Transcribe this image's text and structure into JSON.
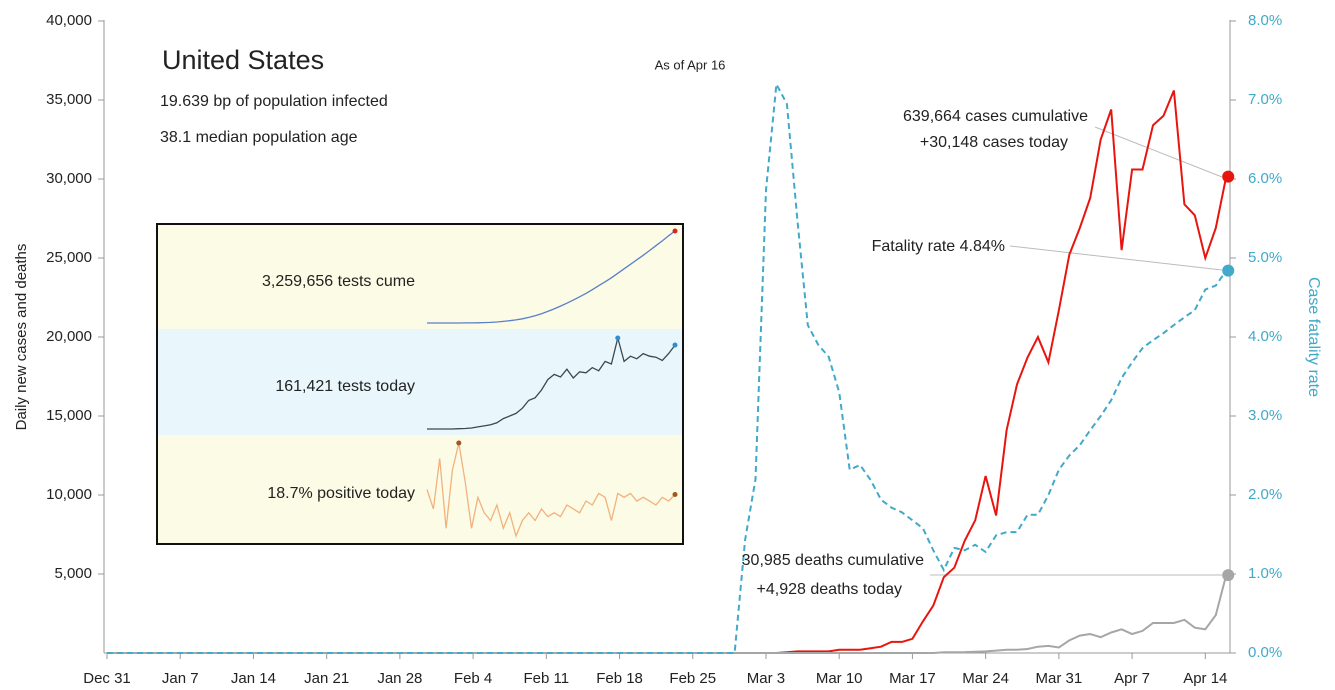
{
  "chart_data": [
    {
      "type": "line",
      "title": "United States",
      "annotations": [
        "19.639 bp of population infected",
        "38.1 median population age",
        "As of Apr 16",
        "639,664 cases cumulative",
        "+30,148 cases today",
        "Fatality rate 4.84%",
        "30,985 deaths cumulative",
        "+4,928 deaths today"
      ],
      "ylabel": "Daily new cases and deaths",
      "y2label": "Case fatality rate",
      "categories": [
        "Dec 31",
        null,
        null,
        null,
        null,
        null,
        null,
        "Jan 7",
        null,
        null,
        null,
        null,
        null,
        null,
        "Jan 14",
        null,
        null,
        null,
        null,
        null,
        null,
        "Jan 21",
        null,
        null,
        null,
        null,
        null,
        null,
        "Jan 28",
        null,
        null,
        null,
        null,
        null,
        null,
        "Feb 4",
        null,
        null,
        null,
        null,
        null,
        null,
        "Feb 11",
        null,
        null,
        null,
        null,
        null,
        null,
        "Feb 18",
        null,
        null,
        null,
        null,
        null,
        null,
        "Feb 25",
        null,
        null,
        null,
        null,
        null,
        null,
        "Mar 3",
        null,
        null,
        null,
        null,
        null,
        null,
        "Mar 10",
        null,
        null,
        null,
        null,
        null,
        null,
        "Mar 17",
        null,
        null,
        null,
        null,
        null,
        null,
        "Mar 24",
        null,
        null,
        null,
        null,
        null,
        null,
        "Mar 31",
        null,
        null,
        null,
        null,
        null,
        null,
        "Apr 7",
        null,
        null,
        null,
        null,
        null,
        null,
        "Apr 14",
        null,
        null
      ],
      "series": [
        {
          "name": "Daily new cases",
          "color": "#e8150f",
          "axis": "y",
          "dash": false,
          "values": [
            0,
            0,
            0,
            0,
            0,
            0,
            0,
            0,
            0,
            0,
            0,
            0,
            0,
            0,
            0,
            0,
            0,
            0,
            0,
            0,
            0,
            0,
            0,
            0,
            0,
            0,
            0,
            0,
            0,
            0,
            0,
            0,
            0,
            0,
            0,
            0,
            0,
            0,
            0,
            0,
            0,
            0,
            0,
            0,
            0,
            0,
            0,
            0,
            0,
            0,
            0,
            0,
            0,
            0,
            0,
            0,
            0,
            0,
            0,
            0,
            0,
            0,
            0,
            0,
            0,
            50,
            100,
            100,
            100,
            100,
            200,
            200,
            200,
            300,
            400,
            700,
            700,
            900,
            2000,
            3000,
            4800,
            5400,
            7100,
            8400,
            11200,
            8700,
            14100,
            17000,
            18700,
            20000,
            18400,
            21700,
            25200,
            26900,
            28800,
            32500,
            34400,
            25500,
            30600,
            30600,
            33400,
            34000,
            35600,
            28400,
            27700,
            25000,
            26900,
            30148
          ]
        },
        {
          "name": "Daily new deaths",
          "color": "#a6a6a6",
          "axis": "y",
          "dash": false,
          "values": [
            0,
            0,
            0,
            0,
            0,
            0,
            0,
            0,
            0,
            0,
            0,
            0,
            0,
            0,
            0,
            0,
            0,
            0,
            0,
            0,
            0,
            0,
            0,
            0,
            0,
            0,
            0,
            0,
            0,
            0,
            0,
            0,
            0,
            0,
            0,
            0,
            0,
            0,
            0,
            0,
            0,
            0,
            0,
            0,
            0,
            0,
            0,
            0,
            0,
            0,
            0,
            0,
            0,
            0,
            0,
            0,
            0,
            0,
            0,
            0,
            0,
            0,
            0,
            0,
            0,
            0,
            0,
            0,
            0,
            0,
            0,
            0,
            0,
            0,
            0,
            0,
            0,
            0,
            0,
            0,
            50,
            50,
            60,
            80,
            100,
            150,
            200,
            200,
            250,
            400,
            450,
            350,
            800,
            1100,
            1200,
            1000,
            1300,
            1500,
            1200,
            1400,
            1900,
            1900,
            1900,
            2100,
            1600,
            1500,
            2400,
            4928
          ]
        },
        {
          "name": "Case fatality rate",
          "color": "#41a9c9",
          "axis": "y2",
          "dash": true,
          "values": [
            0,
            0,
            0,
            0,
            0,
            0,
            0,
            0,
            0,
            0,
            0,
            0,
            0,
            0,
            0,
            0,
            0,
            0,
            0,
            0,
            0,
            0,
            0,
            0,
            0,
            0,
            0,
            0,
            0,
            0,
            0,
            0,
            0,
            0,
            0,
            0,
            0,
            0,
            0,
            0,
            0,
            0,
            0,
            0,
            0,
            0,
            0,
            0,
            0,
            0,
            0,
            0,
            0,
            0,
            0,
            0,
            0,
            0,
            0,
            0,
            0,
            1.43,
            2.2,
            5.86,
            7.2,
            6.95,
            5.48,
            4.15,
            3.9,
            3.75,
            3.3,
            2.32,
            2.38,
            2.19,
            1.94,
            1.84,
            1.78,
            1.68,
            1.58,
            1.3,
            1.05,
            1.33,
            1.3,
            1.37,
            1.28,
            1.49,
            1.53,
            1.53,
            1.75,
            1.75,
            2.0,
            2.32,
            2.5,
            2.63,
            2.82,
            3.0,
            3.2,
            3.48,
            3.68,
            3.86,
            3.96,
            4.05,
            4.15,
            4.25,
            4.34,
            4.6,
            4.65,
            4.84
          ]
        }
      ],
      "ylim": [
        0,
        40000
      ],
      "yticks": [
        {
          "value": 5000,
          "label": "5,000"
        },
        {
          "value": 10000,
          "label": "10,000"
        },
        {
          "value": 15000,
          "label": "15,000"
        },
        {
          "value": 20000,
          "label": "20,000"
        },
        {
          "value": 25000,
          "label": "25,000"
        },
        {
          "value": 30000,
          "label": "30,000"
        },
        {
          "value": 35000,
          "label": "35,000"
        },
        {
          "value": 40000,
          "label": "40,000"
        }
      ],
      "y2lim": [
        0,
        8
      ],
      "y2ticks": [
        {
          "value": 0,
          "label": "0.0%"
        },
        {
          "value": 1,
          "label": "1.0%"
        },
        {
          "value": 2,
          "label": "2.0%"
        },
        {
          "value": 3,
          "label": "3.0%"
        },
        {
          "value": 4,
          "label": "4.0%"
        },
        {
          "value": 5,
          "label": "5.0%"
        },
        {
          "value": 6,
          "label": "6.0%"
        },
        {
          "value": 7,
          "label": "7.0%"
        },
        {
          "value": 8,
          "label": "8.0%"
        }
      ],
      "grid": false
    },
    {
      "type": "sparklines",
      "series": [
        {
          "name": "3,259,656 tests cume",
          "color": "#5b7fc7",
          "band": "#fbfbe6",
          "dot": "#d7261e",
          "values": [
            0,
            0,
            0,
            0,
            0,
            1000,
            2000,
            4000,
            8000,
            14000,
            22000,
            35000,
            55000,
            80000,
            110000,
            150000,
            200000,
            260000,
            330000,
            410000,
            500000,
            600000,
            700000,
            810000,
            930000,
            1050000,
            1180000,
            1320000,
            1460000,
            1600000,
            1760000,
            1920000,
            2080000,
            2240000,
            2400000,
            2570000,
            2740000,
            2910000,
            3090000,
            3259656
          ]
        },
        {
          "name": "161,421 tests today",
          "color": "#3c4752",
          "band": "#e9f7fc",
          "dot": "#2d8fd0",
          "values": [
            0,
            0,
            0,
            0,
            0,
            500,
            1000,
            2000,
            4000,
            6000,
            8000,
            12000,
            20000,
            25000,
            30000,
            40000,
            55000,
            60000,
            75000,
            95000,
            105000,
            100000,
            115000,
            98000,
            110000,
            108000,
            118000,
            112000,
            130000,
            125000,
            175000,
            130000,
            140000,
            135000,
            145000,
            140000,
            138000,
            132000,
            145000,
            161421
          ]
        },
        {
          "name": "18.7% positive today",
          "color": "#f2b27e",
          "band": "#fbfbe6",
          "dot": "#a0581c",
          "values": [
            20,
            15,
            28,
            10,
            25,
            32,
            22,
            10,
            18,
            14,
            12,
            16,
            10,
            14,
            8,
            12,
            14,
            12,
            15,
            13,
            14,
            13,
            16,
            15,
            14,
            17,
            16,
            19,
            18,
            12,
            19,
            18,
            19,
            17,
            18,
            17,
            16,
            18,
            17,
            18.7
          ]
        }
      ]
    }
  ]
}
